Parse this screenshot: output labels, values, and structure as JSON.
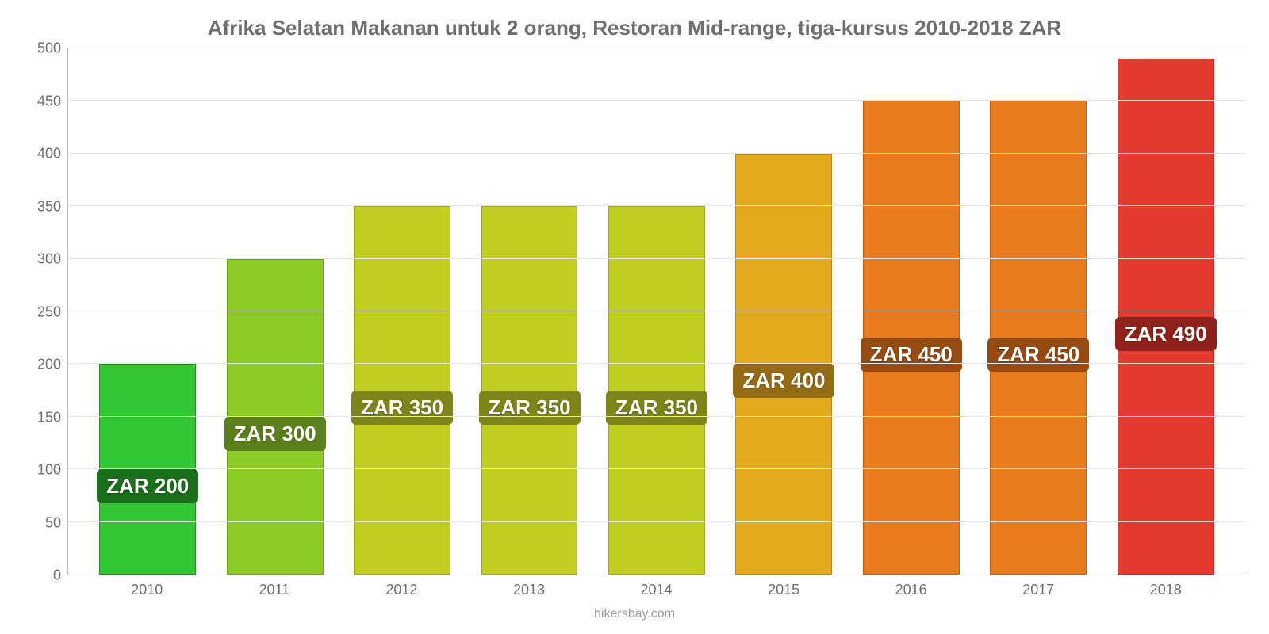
{
  "chart": {
    "type": "bar",
    "title": "Afrika Selatan Makanan untuk 2 orang, Restoran Mid-range, tiga-kursus 2010-2018 ZAR",
    "title_fontsize": 26,
    "title_color": "#6f6f6f",
    "background_color": "#ffffff",
    "grid_color": "#e5e5e5",
    "axis_line_color": "#b8b8b8",
    "axis_label_color": "#6f6f6f",
    "axis_label_fontsize": 18,
    "bar_width": 0.76,
    "ylim": [
      0,
      500
    ],
    "ytick_step": 50,
    "yticks": [
      0,
      50,
      100,
      150,
      200,
      250,
      300,
      350,
      400,
      450,
      500
    ],
    "categories": [
      "2010",
      "2011",
      "2012",
      "2013",
      "2014",
      "2015",
      "2016",
      "2017",
      "2018"
    ],
    "values": [
      200,
      300,
      350,
      350,
      350,
      400,
      450,
      450,
      490
    ],
    "value_labels": [
      "ZAR 200",
      "ZAR 300",
      "ZAR 350",
      "ZAR 350",
      "ZAR 350",
      "ZAR 400",
      "ZAR 450",
      "ZAR 450",
      "ZAR 490"
    ],
    "bar_fill_colors": [
      "#34c634",
      "#8ecb28",
      "#c1cf23",
      "#c1cf23",
      "#c1cf23",
      "#e3ab1e",
      "#e87b1e",
      "#e87b1e",
      "#e33b2f"
    ],
    "bar_border_colors": [
      "#1f8f1f",
      "#6aa023",
      "#9aa61f",
      "#9aa61f",
      "#9aa61f",
      "#b8881a",
      "#bc5f16",
      "#bc5f16",
      "#b72b22"
    ],
    "label_chip_colors": [
      "#1b6e1b",
      "#5a7f1c",
      "#7d841a",
      "#7d841a",
      "#7d841a",
      "#946c15",
      "#954b12",
      "#954b12",
      "#8f221b"
    ],
    "label_chip_fontsize": 26,
    "label_chip_text_color": "#ffffff",
    "footer": "hikersbay.com",
    "footer_color": "#9a9a9a",
    "footer_fontsize": 16
  }
}
